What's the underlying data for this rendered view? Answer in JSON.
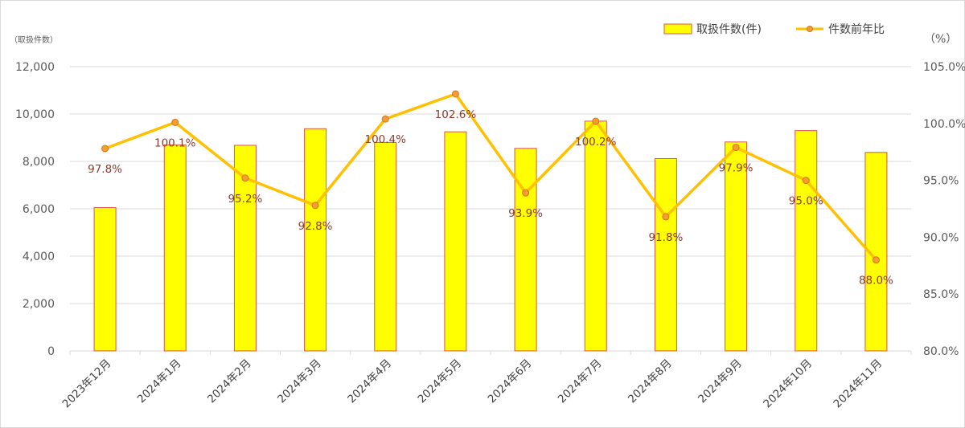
{
  "chart_data": {
    "type": "bar+line",
    "categories": [
      "2023年12月",
      "2024年1月",
      "2024年2月",
      "2024年3月",
      "2024年4月",
      "2024年5月",
      "2024年6月",
      "2024年7月",
      "2024年8月",
      "2024年9月",
      "2024年10月",
      "2024年11月"
    ],
    "series": [
      {
        "name": "取扱件数(件)",
        "type": "bar",
        "axis": "left",
        "values": [
          6050,
          8700,
          8680,
          9380,
          8800,
          9250,
          8550,
          9700,
          8120,
          8820,
          9300,
          8380
        ]
      },
      {
        "name": "件数前年比",
        "type": "line",
        "axis": "right",
        "values": [
          97.8,
          100.1,
          95.2,
          92.8,
          100.4,
          102.6,
          93.9,
          100.2,
          91.8,
          97.9,
          95.0,
          88.0
        ],
        "labels": [
          "97.8%",
          "100.1%",
          "95.2%",
          "92.8%",
          "100.4%",
          "102.6%",
          "93.9%",
          "100.2%",
          "91.8%",
          "97.9%",
          "95.0%",
          "88.0%"
        ]
      }
    ],
    "y_left": {
      "unit_label": "（取扱件数）",
      "ylim": [
        0,
        12000
      ],
      "ticks": [
        "0",
        "2,000",
        "4,000",
        "6,000",
        "8,000",
        "10,000",
        "12,000"
      ]
    },
    "y_right": {
      "unit_label": "（%）",
      "ylim": [
        80,
        105
      ],
      "ticks": [
        "80.0%",
        "85.0%",
        "90.0%",
        "95.0%",
        "100.0%",
        "105.0%"
      ]
    },
    "grid": true,
    "legend_position": "top-right",
    "colors": {
      "bar_fill": "#ffff00",
      "bar_stroke": "#d9534f",
      "line": "#ffc000",
      "marker_fill": "#f0a030",
      "marker_stroke": "#e0701a",
      "label": "#8b3a2b",
      "grid": "#d9d9d9"
    }
  }
}
